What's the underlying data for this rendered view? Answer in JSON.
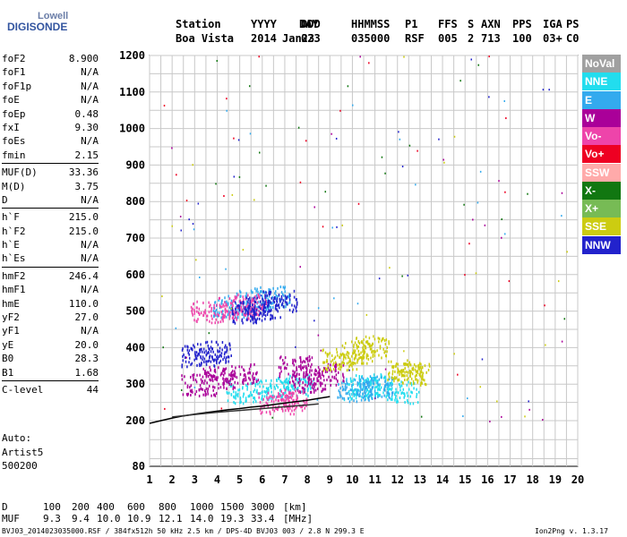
{
  "logo": {
    "brand": "Lowell",
    "product": "DIGISONDE"
  },
  "header": {
    "labels": [
      "Station",
      "YYYY",
      "DAY",
      "DDD",
      "HHMMSS",
      "P1",
      "FFS",
      "S",
      "AXN",
      "PPS",
      "IGA",
      "PS"
    ],
    "values": [
      "Boa Vista",
      "2014",
      "Jan23",
      "023",
      "035000",
      "RSF",
      "005",
      "2",
      "713",
      "100",
      "03+",
      "C0"
    ]
  },
  "params": {
    "group1": [
      {
        "k": "foF2",
        "v": "8.900"
      },
      {
        "k": "foF1",
        "v": "N/A"
      },
      {
        "k": "foF1p",
        "v": "N/A"
      },
      {
        "k": "foE",
        "v": "N/A"
      },
      {
        "k": "foEp",
        "v": "0.48"
      },
      {
        "k": "fxI",
        "v": "9.30"
      },
      {
        "k": "foEs",
        "v": "N/A"
      },
      {
        "k": "fmin",
        "v": "2.15"
      }
    ],
    "group2": [
      {
        "k": "MUF(D)",
        "v": "33.36"
      },
      {
        "k": "M(D)",
        "v": "3.75"
      },
      {
        "k": "D",
        "v": "N/A"
      }
    ],
    "group3": [
      {
        "k": "h`F",
        "v": "215.0"
      },
      {
        "k": "h`F2",
        "v": "215.0"
      },
      {
        "k": "h`E",
        "v": "N/A"
      },
      {
        "k": "h`Es",
        "v": "N/A"
      }
    ],
    "group4": [
      {
        "k": "hmF2",
        "v": "246.4"
      },
      {
        "k": "hmF1",
        "v": "N/A"
      },
      {
        "k": "hmE",
        "v": "110.0"
      },
      {
        "k": "yF2",
        "v": "27.0"
      },
      {
        "k": "yF1",
        "v": "N/A"
      },
      {
        "k": "yE",
        "v": "20.0"
      },
      {
        "k": "B0",
        "v": "28.3"
      },
      {
        "k": "B1",
        "v": "1.68"
      }
    ],
    "group5": [
      {
        "k": "C-level",
        "v": "44"
      }
    ]
  },
  "auto": {
    "line1": "Auto:",
    "line2": "Artist5",
    "line3": "500200"
  },
  "legend": [
    {
      "label": "NoVal",
      "color": "#a0a0a0"
    },
    {
      "label": "NNE",
      "color": "#22ddee"
    },
    {
      "label": "E",
      "color": "#33aaee"
    },
    {
      "label": "W",
      "color": "#aa0099"
    },
    {
      "label": "Vo-",
      "color": "#ee44aa"
    },
    {
      "label": "Vo+",
      "color": "#ee0022"
    },
    {
      "label": "SSW",
      "color": "#ffaaaa"
    },
    {
      "label": "X-",
      "color": "#117711"
    },
    {
      "label": "X+",
      "color": "#77bb55"
    },
    {
      "label": "SSE",
      "color": "#cccc11"
    },
    {
      "label": "NNW",
      "color": "#2222cc"
    }
  ],
  "chart_data": {
    "type": "scatter",
    "xlim": [
      1,
      20
    ],
    "ylim": [
      80,
      1200
    ],
    "x_ticks": [
      1,
      2,
      3,
      4,
      5,
      6,
      7,
      8,
      9,
      10,
      11,
      12,
      13,
      14,
      15,
      16,
      17,
      18,
      19,
      20
    ],
    "y_ticks": [
      80,
      200,
      300,
      400,
      500,
      600,
      700,
      800,
      900,
      1000,
      1100,
      1200
    ],
    "grid": true,
    "series": [
      {
        "color_key": "NNE",
        "points": [
          [
            5.2,
            280
          ],
          [
            6.4,
            290
          ],
          [
            7.5,
            300
          ],
          [
            10.4,
            290
          ],
          [
            10.8,
            300
          ],
          [
            12.2,
            280
          ]
        ]
      },
      {
        "color_key": "E",
        "points": [
          [
            4.6,
            515
          ],
          [
            5.6,
            530
          ],
          [
            6.4,
            540
          ],
          [
            10.1,
            285
          ],
          [
            11,
            295
          ]
        ]
      },
      {
        "color_key": "W",
        "points": [
          [
            3.2,
            300
          ],
          [
            4.0,
            320
          ],
          [
            5.0,
            330
          ],
          [
            7.4,
            350
          ],
          [
            8.0,
            310
          ],
          [
            8.8,
            330
          ]
        ]
      },
      {
        "color_key": "Vo-",
        "points": [
          [
            3.6,
            500
          ],
          [
            4.8,
            510
          ],
          [
            5.4,
            520
          ],
          [
            6.6,
            250
          ],
          [
            7.2,
            260
          ]
        ]
      },
      {
        "color_key": "SSE",
        "points": [
          [
            9.4,
            370
          ],
          [
            10.2,
            390
          ],
          [
            10.8,
            405
          ],
          [
            12.3,
            340
          ],
          [
            12.6,
            330
          ]
        ]
      },
      {
        "color_key": "NNW",
        "points": [
          [
            5.4,
            500
          ],
          [
            6.0,
            510
          ],
          [
            6.8,
            530
          ],
          [
            3.2,
            380
          ],
          [
            3.8,
            390
          ]
        ]
      }
    ],
    "trace": {
      "x": [
        1.0,
        1.5,
        2.0,
        2.5,
        3.0,
        3.5,
        4.0,
        4.5,
        5.0,
        5.5,
        6.0,
        6.5,
        7.0,
        7.5,
        8.0,
        8.5,
        9.0
      ],
      "y": [
        193,
        200,
        207,
        213,
        218,
        222,
        226,
        230,
        233,
        237,
        240,
        244,
        248,
        252,
        256,
        261,
        266
      ]
    },
    "lower_trace": {
      "x": [
        2.0,
        3.0,
        4.0,
        5.0,
        6.0,
        7.0,
        8.0,
        8.5
      ],
      "y": [
        210,
        217,
        223,
        228,
        233,
        238,
        243,
        246
      ]
    }
  },
  "table": {
    "d_label": "D",
    "d_values": [
      "100",
      "200",
      "400",
      "600",
      "800",
      "1000",
      "1500",
      "3000"
    ],
    "d_unit": "[km]",
    "muf_label": "MUF",
    "muf_values": [
      "9.3",
      "9.4",
      "10.0",
      "10.9",
      "12.1",
      "14.0",
      "19.3",
      "33.4"
    ],
    "muf_unit": "[MHz]"
  },
  "footer": {
    "left": "BVJ03_2014023035000.RSF / 384fx512h 50 kHz 2.5 km / DPS-4D BVJ03 003 / 2.8 N 299.3 E",
    "right": "Ion2Png v. 1.3.17"
  }
}
